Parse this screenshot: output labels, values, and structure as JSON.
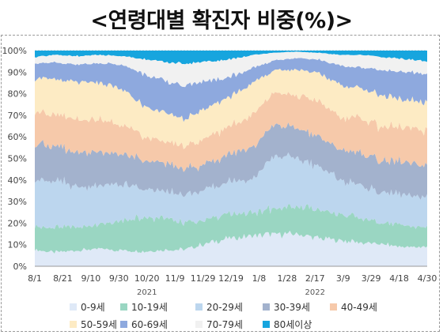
{
  "chart_data": {
    "type": "area",
    "stacked": true,
    "title": "<연령대별 확진자 비중(%)>",
    "x_tick_labels": [
      "8/1",
      "8/21",
      "9/10",
      "9/30",
      "10/20",
      "11/9",
      "11/29",
      "12/19",
      "1/8",
      "1/28",
      "2/17",
      "3/9",
      "3/29",
      "4/18",
      "4/30"
    ],
    "year_labels": [
      {
        "text": "2021",
        "at": "10/20"
      },
      {
        "text": "2022",
        "at": "2/17"
      }
    ],
    "y_tick_labels": [
      "0%",
      "10%",
      "20%",
      "30%",
      "40%",
      "50%",
      "60%",
      "70%",
      "80%",
      "90%",
      "100%"
    ],
    "ylim": [
      0,
      100
    ],
    "grid": "horizontal-dashed",
    "legend_position": "bottom",
    "series": [
      {
        "name": "0-9세",
        "color": "#dfe9f7",
        "values": [
          7.5,
          6.5,
          7.5,
          8,
          7.5,
          7,
          7.5,
          8,
          11,
          13,
          14,
          15,
          15,
          13,
          12,
          11,
          10,
          9,
          9
        ]
      },
      {
        "name": "10-19세",
        "color": "#9ad6c2",
        "values": [
          10.5,
          11.5,
          11,
          11,
          14,
          16,
          15,
          12,
          11,
          11,
          11,
          12,
          13,
          13,
          12,
          11,
          10,
          10,
          9
        ]
      },
      {
        "name": "20-29세",
        "color": "#bcd6ee",
        "values": [
          22,
          21,
          19,
          18,
          17,
          13,
          12,
          13,
          14,
          15,
          16,
          25,
          22,
          20,
          16,
          15,
          14,
          14,
          14
        ]
      },
      {
        "name": "30-39세",
        "color": "#a3b2cd",
        "values": [
          16,
          17,
          16,
          16,
          14,
          13,
          13,
          12,
          12,
          13,
          14,
          14,
          14,
          14,
          14,
          15,
          15,
          15,
          15
        ]
      },
      {
        "name": "40-49세",
        "color": "#f6c9aa",
        "values": [
          15,
          15,
          15,
          15,
          14,
          11,
          10,
          11,
          12,
          13,
          15,
          15,
          15,
          16,
          15,
          16,
          16,
          16,
          16
        ]
      },
      {
        "name": "50-59세",
        "color": "#fdebc4",
        "values": [
          16,
          16,
          17,
          17,
          17,
          14,
          13,
          13,
          14,
          14,
          15,
          10,
          12,
          13,
          15,
          14,
          14,
          13,
          13
        ]
      },
      {
        "name": "60-69세",
        "color": "#8ea9de",
        "values": [
          7,
          7.5,
          8,
          9,
          11,
          15,
          15,
          15,
          12,
          9,
          7,
          4.5,
          5.5,
          6,
          9,
          10,
          12,
          13,
          13
        ]
      },
      {
        "name": "70-79세",
        "color": "#f1f1f1",
        "values": [
          3,
          3.5,
          4,
          4,
          4,
          7,
          9,
          10,
          9,
          8,
          6,
          3.5,
          3,
          3,
          5,
          6,
          6,
          6,
          6
        ]
      },
      {
        "name": "80세이상",
        "color": "#17a5de",
        "values": [
          3,
          2,
          2.5,
          2,
          2.5,
          4,
          5.5,
          6,
          5,
          4,
          2,
          1,
          0.5,
          1,
          2,
          2,
          3,
          4,
          5
        ]
      }
    ]
  }
}
